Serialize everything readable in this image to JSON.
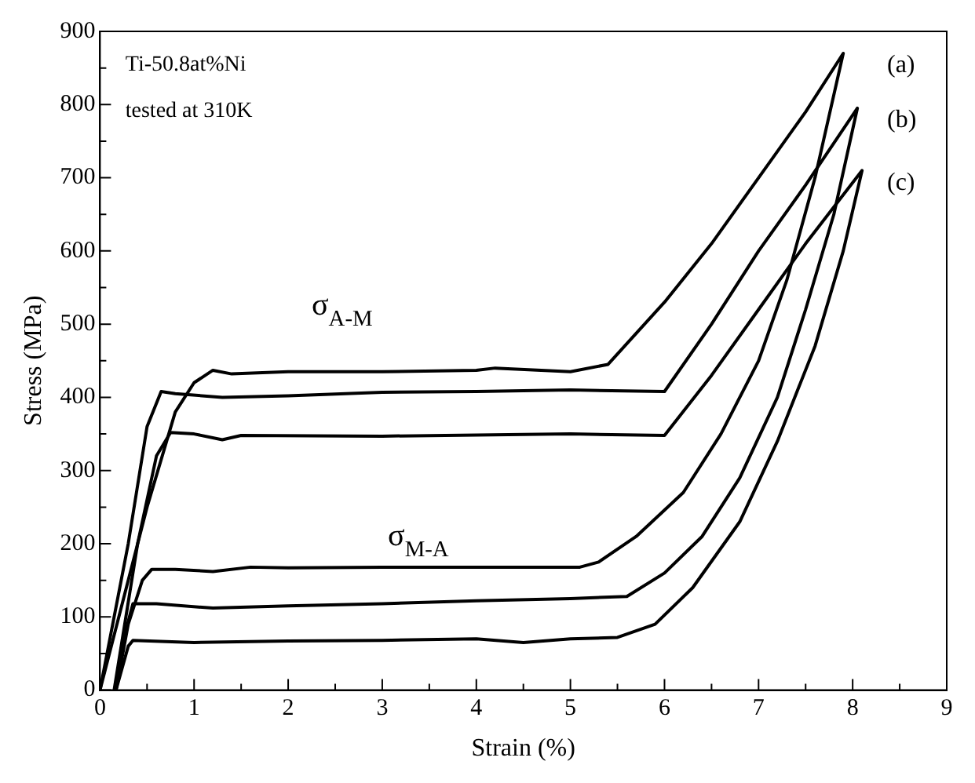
{
  "chart_data": {
    "type": "line",
    "xlabel": "Strain (%)",
    "ylabel": "Stress (MPa)",
    "xlim": [
      0,
      9
    ],
    "ylim": [
      0,
      900
    ],
    "xticks": [
      0,
      {
        "value": 0.5,
        "label": null
      },
      1,
      {
        "value": 1.5,
        "label": null
      },
      2,
      {
        "value": 2.5,
        "label": null
      },
      3,
      {
        "value": 3.5,
        "label": null
      },
      4,
      {
        "value": 4.5,
        "label": null
      },
      5,
      {
        "value": 5.5,
        "label": null
      },
      6,
      {
        "value": 6.5,
        "label": null
      },
      7,
      {
        "value": 7.5,
        "label": null
      },
      8,
      {
        "value": 8.5,
        "label": null
      },
      9
    ],
    "yticks": [
      0,
      {
        "value": 50,
        "label": null
      },
      100,
      {
        "value": 150,
        "label": null
      },
      200,
      {
        "value": 250,
        "label": null
      },
      300,
      {
        "value": 350,
        "label": null
      },
      400,
      {
        "value": 450,
        "label": null
      },
      500,
      {
        "value": 550,
        "label": null
      },
      600,
      {
        "value": 650,
        "label": null
      },
      700,
      {
        "value": 750,
        "label": null
      },
      800,
      {
        "value": 850,
        "label": null
      },
      900
    ],
    "grid": false,
    "legend": false,
    "marker": "none",
    "line_style": "solid",
    "series": [
      {
        "name": "(a)",
        "color": "#000000",
        "x": [
          0,
          0.5,
          0.8,
          1.0,
          1.2,
          1.4,
          2,
          3,
          4,
          4.2,
          5,
          5.4,
          6,
          6.5,
          7,
          7.5,
          7.9,
          7.6,
          7.3,
          7.0,
          6.6,
          6.2,
          5.7,
          5.3,
          5.1,
          4,
          3,
          2,
          1.6,
          1.2,
          0.8,
          0.55,
          0.45,
          0.3,
          0.17
        ],
        "values": [
          0,
          250,
          380,
          420,
          437,
          432,
          435,
          435,
          437,
          440,
          435,
          445,
          530,
          610,
          700,
          790,
          870,
          700,
          560,
          450,
          350,
          270,
          210,
          175,
          168,
          168,
          168,
          167,
          168,
          162,
          165,
          165,
          150,
          90,
          0
        ]
      },
      {
        "name": "(b)",
        "color": "#000000",
        "x": [
          0,
          0.3,
          0.5,
          0.65,
          0.8,
          1.3,
          2,
          3,
          4,
          5,
          6,
          6.5,
          7,
          7.5,
          8.05,
          7.8,
          7.5,
          7.2,
          6.8,
          6.4,
          6.0,
          5.6,
          5,
          4,
          3,
          2,
          1.2,
          0.6,
          0.35,
          0.25,
          0.17
        ],
        "values": [
          0,
          200,
          360,
          408,
          405,
          400,
          402,
          407,
          408,
          410,
          408,
          500,
          600,
          690,
          795,
          650,
          520,
          400,
          290,
          210,
          160,
          128,
          125,
          122,
          118,
          115,
          112,
          118,
          118,
          70,
          0
        ]
      },
      {
        "name": "(c)",
        "color": "#000000",
        "x": [
          0.15,
          0.4,
          0.6,
          0.75,
          1,
          1.3,
          1.5,
          3,
          5,
          6,
          6.5,
          7,
          7.5,
          8.1,
          7.9,
          7.6,
          7.2,
          6.8,
          6.3,
          5.9,
          5.5,
          5,
          4.5,
          4,
          3,
          2,
          1,
          0.35,
          0.3,
          0.17
        ],
        "values": [
          0,
          200,
          320,
          352,
          350,
          342,
          348,
          347,
          350,
          348,
          430,
          520,
          610,
          710,
          600,
          470,
          340,
          230,
          140,
          90,
          72,
          70,
          65,
          70,
          68,
          67,
          65,
          68,
          60,
          0
        ]
      }
    ],
    "annotations": [
      "Ti-50.8at%Ni",
      "tested at 310K",
      "σ$_{A-M}$",
      "σ$_{M-A}$"
    ]
  }
}
